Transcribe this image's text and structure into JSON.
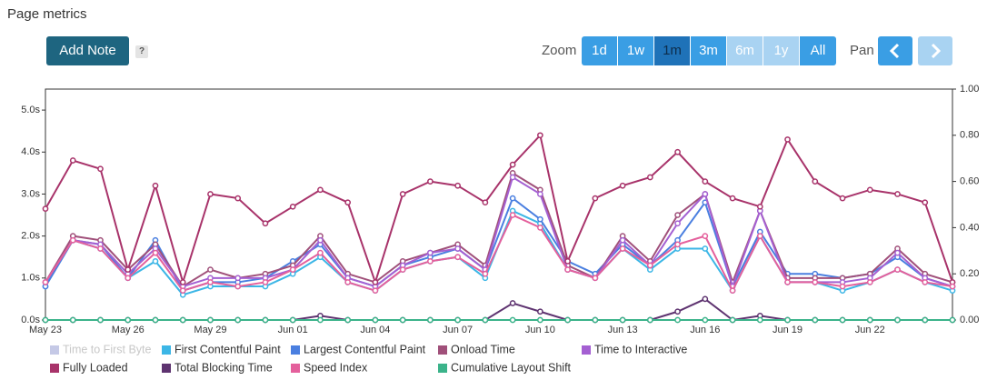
{
  "page": {
    "title": "Page metrics",
    "add_note": "Add Note",
    "help": "?",
    "zoom_label": "Zoom",
    "zoom_buttons": [
      {
        "label": "1d",
        "state": "normal"
      },
      {
        "label": "1w",
        "state": "normal"
      },
      {
        "label": "1m",
        "state": "active"
      },
      {
        "label": "3m",
        "state": "normal"
      },
      {
        "label": "6m",
        "state": "disabled"
      },
      {
        "label": "1y",
        "state": "disabled"
      },
      {
        "label": "All",
        "state": "normal"
      }
    ],
    "pan_label": "Pan"
  },
  "chart_data": {
    "type": "line",
    "categories": [
      "May 23",
      null,
      null,
      "May 26",
      null,
      null,
      "May 29",
      null,
      null,
      "Jun 01",
      null,
      null,
      "Jun 04",
      null,
      null,
      "Jun 07",
      null,
      null,
      "Jun 10",
      null,
      null,
      "Jun 13",
      null,
      null,
      "Jun 16",
      null,
      null,
      "Jun 19",
      null,
      null,
      "Jun 22",
      null,
      null,
      null
    ],
    "ylim": [
      0,
      5.5
    ],
    "yticks": [
      {
        "value": 0,
        "label": "0.0s"
      },
      {
        "value": 1,
        "label": "1.0s"
      },
      {
        "value": 2,
        "label": "2.0s"
      },
      {
        "value": 3,
        "label": "3.0s"
      },
      {
        "value": 4,
        "label": "4.0s"
      },
      {
        "value": 5,
        "label": "5.0s"
      }
    ],
    "y2lim": [
      0,
      1
    ],
    "y2ticks": [
      {
        "value": 0,
        "label": "0.00"
      },
      {
        "value": 0.2,
        "label": "0.20"
      },
      {
        "value": 0.4,
        "label": "0.40"
      },
      {
        "value": 0.6,
        "label": "0.60"
      },
      {
        "value": 0.8,
        "label": "0.80"
      },
      {
        "value": 1,
        "label": "1.00"
      }
    ],
    "series": [
      {
        "name": "Time to First Byte",
        "color": "#c5c9e6",
        "visible": false
      },
      {
        "name": "First Contentful Paint",
        "color": "#3cb6e6",
        "values": [
          0.8,
          1.9,
          1.7,
          1.0,
          1.4,
          0.6,
          0.8,
          0.8,
          0.8,
          1.1,
          1.5,
          0.9,
          0.7,
          1.2,
          1.4,
          1.5,
          1.0,
          2.6,
          2.3,
          1.2,
          1.0,
          1.7,
          1.2,
          1.7,
          1.7,
          0.7,
          2.0,
          0.9,
          0.9,
          0.7,
          0.9,
          1.2,
          0.9,
          0.7
        ]
      },
      {
        "name": "Largest Contentful Paint",
        "color": "#4a7fe0",
        "values": [
          0.8,
          1.9,
          1.8,
          1.0,
          1.9,
          0.7,
          0.9,
          0.9,
          1.0,
          1.4,
          1.8,
          1.0,
          0.8,
          1.3,
          1.5,
          1.7,
          1.2,
          2.9,
          2.4,
          1.4,
          1.1,
          1.8,
          1.3,
          1.9,
          2.8,
          0.8,
          2.1,
          1.1,
          1.1,
          1.0,
          1.1,
          1.5,
          1.0,
          0.8
        ]
      },
      {
        "name": "Onload Time",
        "color": "#a0507a",
        "values": [
          0.9,
          2.0,
          1.9,
          1.2,
          1.8,
          0.8,
          1.2,
          1.0,
          1.1,
          1.3,
          2.0,
          1.1,
          0.9,
          1.4,
          1.6,
          1.8,
          1.3,
          3.5,
          3.1,
          1.3,
          1.0,
          2.0,
          1.4,
          2.5,
          3.0,
          0.9,
          2.6,
          1.0,
          1.0,
          1.0,
          1.1,
          1.7,
          1.1,
          0.9
        ]
      },
      {
        "name": "Time to Interactive",
        "color": "#a460d2",
        "values": [
          0.9,
          1.9,
          1.8,
          1.1,
          1.7,
          0.8,
          1.0,
          1.0,
          1.0,
          1.2,
          1.9,
          1.0,
          0.8,
          1.3,
          1.6,
          1.7,
          1.2,
          3.4,
          3.0,
          1.2,
          1.0,
          1.9,
          1.3,
          2.3,
          3.0,
          0.8,
          2.6,
          0.9,
          0.9,
          0.9,
          1.0,
          1.6,
          1.0,
          0.8
        ]
      },
      {
        "name": "Fully Loaded",
        "color": "#a8336a",
        "values": [
          2.65,
          3.8,
          3.6,
          1.2,
          3.2,
          0.9,
          3.0,
          2.9,
          2.3,
          2.7,
          3.1,
          2.8,
          0.9,
          3.0,
          3.3,
          3.2,
          2.8,
          3.7,
          4.4,
          1.4,
          2.9,
          3.2,
          3.4,
          4.0,
          3.3,
          2.9,
          2.7,
          4.3,
          3.3,
          2.9,
          3.1,
          3.0,
          2.8,
          0.9
        ]
      },
      {
        "name": "Total Blocking Time",
        "color": "#5e3370",
        "values": [
          0,
          0,
          0,
          0,
          0,
          0,
          0,
          0,
          0,
          0,
          0.1,
          0,
          0,
          0,
          0,
          0,
          0,
          0.4,
          0.2,
          0,
          0,
          0,
          0,
          0.2,
          0.5,
          0,
          0.1,
          0,
          0,
          0,
          0,
          0,
          0,
          0
        ]
      },
      {
        "name": "Speed Index",
        "color": "#e4609c",
        "values": [
          0.9,
          1.9,
          1.7,
          1.0,
          1.6,
          0.7,
          0.9,
          0.8,
          0.9,
          1.2,
          1.6,
          0.9,
          0.7,
          1.2,
          1.4,
          1.5,
          1.1,
          2.5,
          2.2,
          1.2,
          1.0,
          1.7,
          1.3,
          1.8,
          2.0,
          0.7,
          2.0,
          0.9,
          0.9,
          0.8,
          0.9,
          1.2,
          0.9,
          0.8
        ]
      },
      {
        "name": "Cumulative Layout Shift",
        "color": "#3bb38a",
        "axis": "y2",
        "values": [
          0,
          0,
          0,
          0,
          0,
          0,
          0,
          0,
          0,
          0,
          0,
          0,
          0,
          0,
          0,
          0,
          0,
          0,
          0,
          0,
          0,
          0,
          0,
          0,
          0,
          0,
          0,
          0,
          0,
          0,
          0,
          0,
          0,
          0
        ]
      }
    ]
  }
}
